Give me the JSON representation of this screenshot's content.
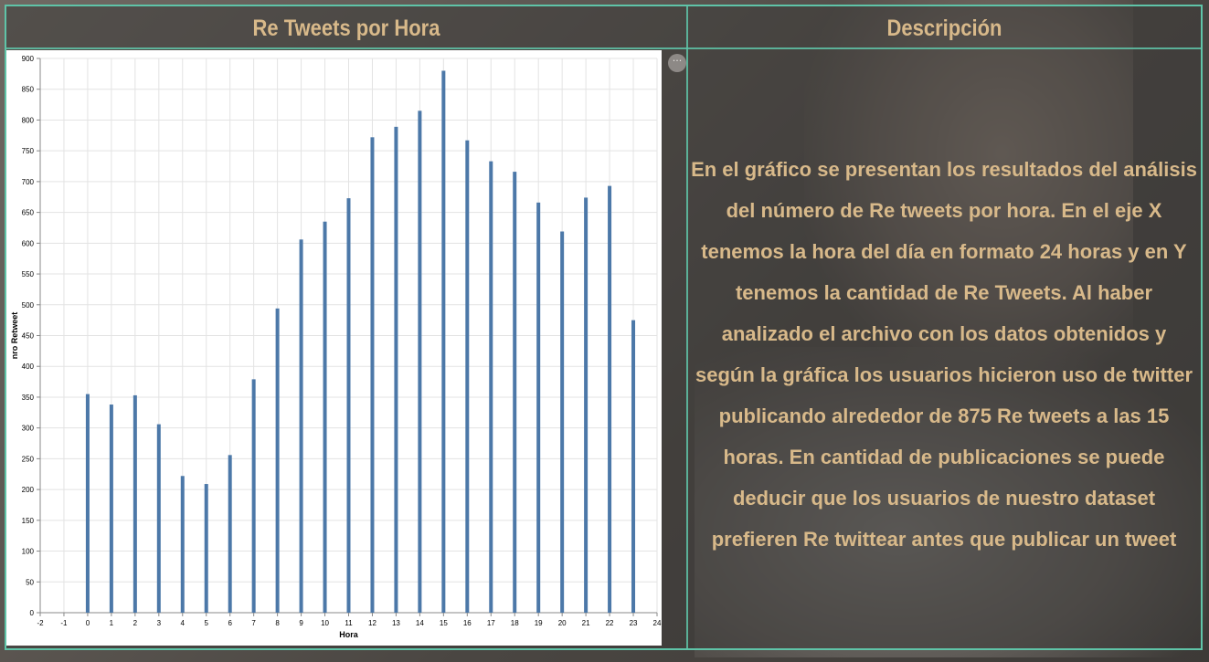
{
  "panels": {
    "chart_title": "Re Tweets por Hora",
    "description_title": "Descripción",
    "description_text": "En el gráfico se presentan los resultados del análisis del número de Re tweets por hora. En el eje X tenemos la hora del día en formato 24 horas y en Y tenemos la cantidad de Re Tweets. Al haber analizado el archivo con los datos obtenidos y según la gráfica los usuarios hicieron uso de twitter publicando alrededor de 875 Re tweets a las 15 horas. En cantidad de publicaciones se puede deducir que los usuarios de nuestro dataset prefieren Re twittear antes que publicar un tweet",
    "more_icon": "ellipsis-icon",
    "more_label": "···"
  },
  "colors": {
    "accent_border": "#5fc4a8",
    "title_text": "#d8b98a",
    "bar": "#4c78a8"
  },
  "chart_data": {
    "type": "bar",
    "xlabel": "Hora",
    "ylabel": "nro Retweet",
    "xlim": [
      -2,
      24
    ],
    "ylim": [
      0,
      900
    ],
    "x_ticks": [
      -2,
      -1,
      0,
      1,
      2,
      3,
      4,
      5,
      6,
      7,
      8,
      9,
      10,
      11,
      12,
      13,
      14,
      15,
      16,
      17,
      18,
      19,
      20,
      21,
      22,
      23,
      24
    ],
    "y_ticks": [
      0,
      50,
      100,
      150,
      200,
      250,
      300,
      350,
      400,
      450,
      500,
      550,
      600,
      650,
      700,
      750,
      800,
      850,
      900
    ],
    "grid": true,
    "categories": [
      0,
      1,
      2,
      3,
      4,
      5,
      6,
      7,
      8,
      9,
      10,
      11,
      12,
      13,
      14,
      15,
      16,
      17,
      18,
      19,
      20,
      21,
      22,
      23
    ],
    "values": [
      355,
      338,
      353,
      306,
      222,
      209,
      256,
      379,
      494,
      606,
      635,
      673,
      772,
      789,
      815,
      880,
      767,
      733,
      716,
      666,
      619,
      674,
      693,
      475
    ]
  }
}
